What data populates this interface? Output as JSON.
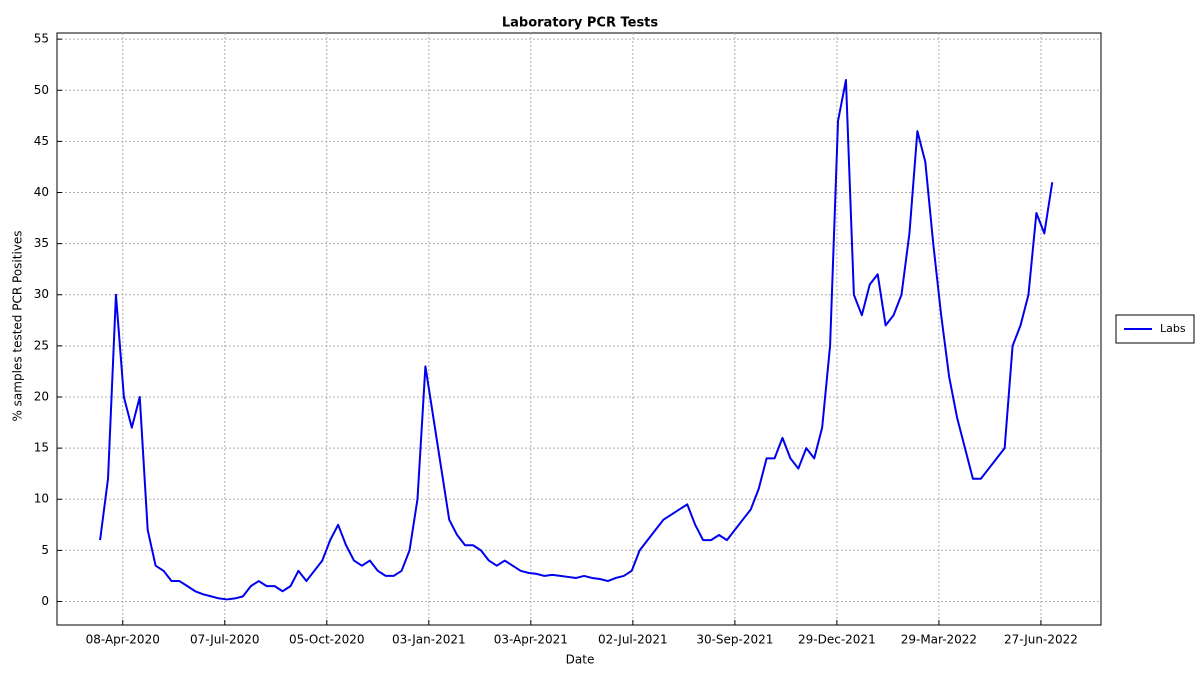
{
  "chart_data": {
    "type": "line",
    "title": "Laboratory PCR Tests",
    "xlabel": "Date",
    "ylabel": "% samples tested PCR Positives",
    "x": [
      "2020-03-19",
      "2020-03-26",
      "2020-04-02",
      "2020-04-09",
      "2020-04-16",
      "2020-04-23",
      "2020-04-30",
      "2020-05-07",
      "2020-05-14",
      "2020-05-21",
      "2020-05-28",
      "2020-06-04",
      "2020-06-11",
      "2020-06-18",
      "2020-06-25",
      "2020-07-02",
      "2020-07-09",
      "2020-07-16",
      "2020-07-23",
      "2020-07-30",
      "2020-08-06",
      "2020-08-13",
      "2020-08-20",
      "2020-08-27",
      "2020-09-03",
      "2020-09-10",
      "2020-09-17",
      "2020-09-24",
      "2020-10-01",
      "2020-10-08",
      "2020-10-15",
      "2020-10-22",
      "2020-10-29",
      "2020-11-05",
      "2020-11-12",
      "2020-11-19",
      "2020-11-26",
      "2020-12-03",
      "2020-12-10",
      "2020-12-17",
      "2020-12-24",
      "2020-12-31",
      "2021-01-07",
      "2021-01-14",
      "2021-01-21",
      "2021-01-28",
      "2021-02-04",
      "2021-02-11",
      "2021-02-18",
      "2021-02-25",
      "2021-03-04",
      "2021-03-11",
      "2021-03-18",
      "2021-03-25",
      "2021-04-01",
      "2021-04-08",
      "2021-04-15",
      "2021-04-22",
      "2021-04-29",
      "2021-05-06",
      "2021-05-13",
      "2021-05-20",
      "2021-05-27",
      "2021-06-03",
      "2021-06-10",
      "2021-06-17",
      "2021-06-24",
      "2021-07-01",
      "2021-07-08",
      "2021-07-15",
      "2021-07-22",
      "2021-07-29",
      "2021-08-05",
      "2021-08-12",
      "2021-08-19",
      "2021-08-26",
      "2021-09-02",
      "2021-09-09",
      "2021-09-16",
      "2021-09-23",
      "2021-09-30",
      "2021-10-07",
      "2021-10-14",
      "2021-10-21",
      "2021-10-28",
      "2021-11-04",
      "2021-11-11",
      "2021-11-18",
      "2021-11-25",
      "2021-12-02",
      "2021-12-09",
      "2021-12-16",
      "2021-12-23",
      "2021-12-30",
      "2022-01-06",
      "2022-01-13",
      "2022-01-20",
      "2022-01-27",
      "2022-02-03",
      "2022-02-10",
      "2022-02-17",
      "2022-02-24",
      "2022-03-03",
      "2022-03-10",
      "2022-03-17",
      "2022-03-24",
      "2022-03-31",
      "2022-04-07",
      "2022-04-14",
      "2022-04-21",
      "2022-04-28",
      "2022-05-05",
      "2022-05-12",
      "2022-05-19",
      "2022-05-26",
      "2022-06-02",
      "2022-06-09",
      "2022-06-16",
      "2022-06-23",
      "2022-06-30",
      "2022-07-07"
    ],
    "series": [
      {
        "name": "Labs",
        "color": "#0000ee",
        "values": [
          6,
          12,
          30,
          20,
          17,
          20,
          7,
          3.5,
          3,
          2,
          2,
          1.5,
          1,
          0.7,
          0.5,
          0.3,
          0.2,
          0.3,
          0.5,
          1.5,
          2,
          1.5,
          1.5,
          1,
          1.5,
          3,
          2,
          3,
          4,
          6,
          7.5,
          5.5,
          4,
          3.5,
          4,
          3,
          2.5,
          2.5,
          3,
          5,
          10,
          23,
          18,
          13,
          8,
          6.5,
          5.5,
          5.5,
          5,
          4,
          3.5,
          4,
          3.5,
          3,
          2.8,
          2.7,
          2.5,
          2.6,
          2.5,
          2.4,
          2.3,
          2.5,
          2.3,
          2.2,
          2,
          2.3,
          2.5,
          3,
          5,
          6,
          7,
          8,
          8.5,
          9,
          9.5,
          7.5,
          6,
          6,
          6.5,
          6,
          7,
          8,
          9,
          11,
          14,
          14,
          16,
          14,
          13,
          15,
          14,
          17,
          25,
          47,
          51,
          30,
          28,
          31,
          32,
          27,
          28,
          30,
          36,
          46,
          43,
          35,
          28,
          22,
          18,
          15,
          12,
          12,
          13,
          14,
          15,
          25,
          27,
          30,
          38,
          36,
          41
        ]
      }
    ],
    "xlim": [
      "2020-02-10",
      "2022-08-19"
    ],
    "xticks": [
      {
        "value": "2020-04-08",
        "label": "08-Apr-2020"
      },
      {
        "value": "2020-07-07",
        "label": "07-Jul-2020"
      },
      {
        "value": "2020-10-05",
        "label": "05-Oct-2020"
      },
      {
        "value": "2021-01-03",
        "label": "03-Jan-2021"
      },
      {
        "value": "2021-04-03",
        "label": "03-Apr-2021"
      },
      {
        "value": "2021-07-02",
        "label": "02-Jul-2021"
      },
      {
        "value": "2021-09-30",
        "label": "30-Sep-2021"
      },
      {
        "value": "2021-12-29",
        "label": "29-Dec-2021"
      },
      {
        "value": "2022-03-29",
        "label": "29-Mar-2022"
      },
      {
        "value": "2022-06-27",
        "label": "27-Jun-2022"
      }
    ],
    "ylim": [
      -2.3,
      55.6
    ],
    "yticks": [
      0,
      5,
      10,
      15,
      20,
      25,
      30,
      35,
      40,
      45,
      50,
      55
    ],
    "grid": true,
    "legend": "right"
  }
}
